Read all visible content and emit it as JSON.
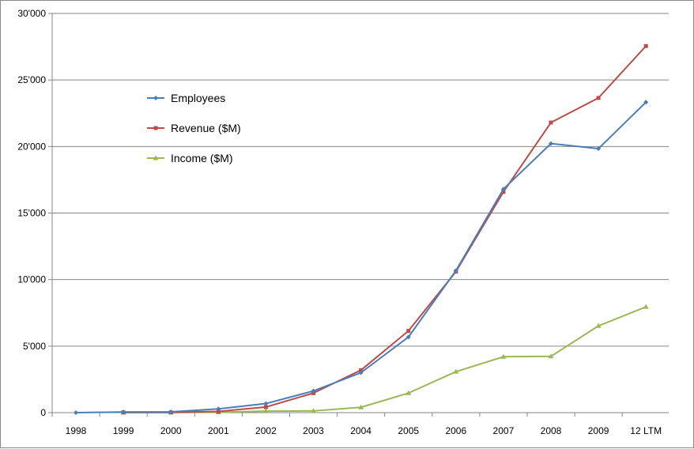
{
  "chart_data": {
    "type": "line",
    "title": "",
    "xlabel": "",
    "ylabel": "",
    "categories": [
      "1998",
      "1999",
      "2000",
      "2001",
      "2002",
      "2003",
      "2004",
      "2005",
      "2006",
      "2007",
      "2008",
      "2009",
      "12 LTM"
    ],
    "ylim": [
      0,
      30000
    ],
    "yticks": [
      0,
      5000,
      10000,
      15000,
      20000,
      25000,
      30000
    ],
    "ytick_labels": [
      "0",
      "5'000",
      "10'000",
      "15'000",
      "20'000",
      "25'000",
      "30'000"
    ],
    "grid": true,
    "legend_position": "upper-left inside plot",
    "series": [
      {
        "name": "Employees",
        "color": "#4a7ebb",
        "marker": "diamond",
        "values": [
          0,
          50,
          60,
          280,
          680,
          1630,
          3000,
          5680,
          10670,
          16800,
          20220,
          19840,
          23330
        ]
      },
      {
        "name": "Revenue ($M)",
        "color": "#be4b48",
        "marker": "square",
        "values": [
          null,
          20,
          20,
          90,
          420,
          1470,
          3190,
          6140,
          10600,
          16590,
          21800,
          23650,
          27550
        ]
      },
      {
        "name": "Income ($M)",
        "color": "#98b954",
        "marker": "triangle",
        "values": [
          null,
          0,
          10,
          30,
          110,
          130,
          400,
          1470,
          3080,
          4200,
          4230,
          6520,
          7950
        ]
      }
    ]
  }
}
